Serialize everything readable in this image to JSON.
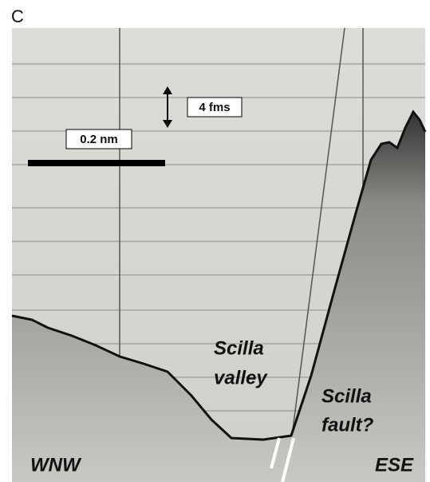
{
  "panel_label": "C",
  "scale": {
    "vertical": "4 fms",
    "horizontal": "0.2 nm"
  },
  "annotations": {
    "valley": [
      "Scilla",
      "valley"
    ],
    "fault": [
      "Scilla",
      "fault?"
    ]
  },
  "directions": {
    "left": "WNW",
    "right": "ESE"
  }
}
